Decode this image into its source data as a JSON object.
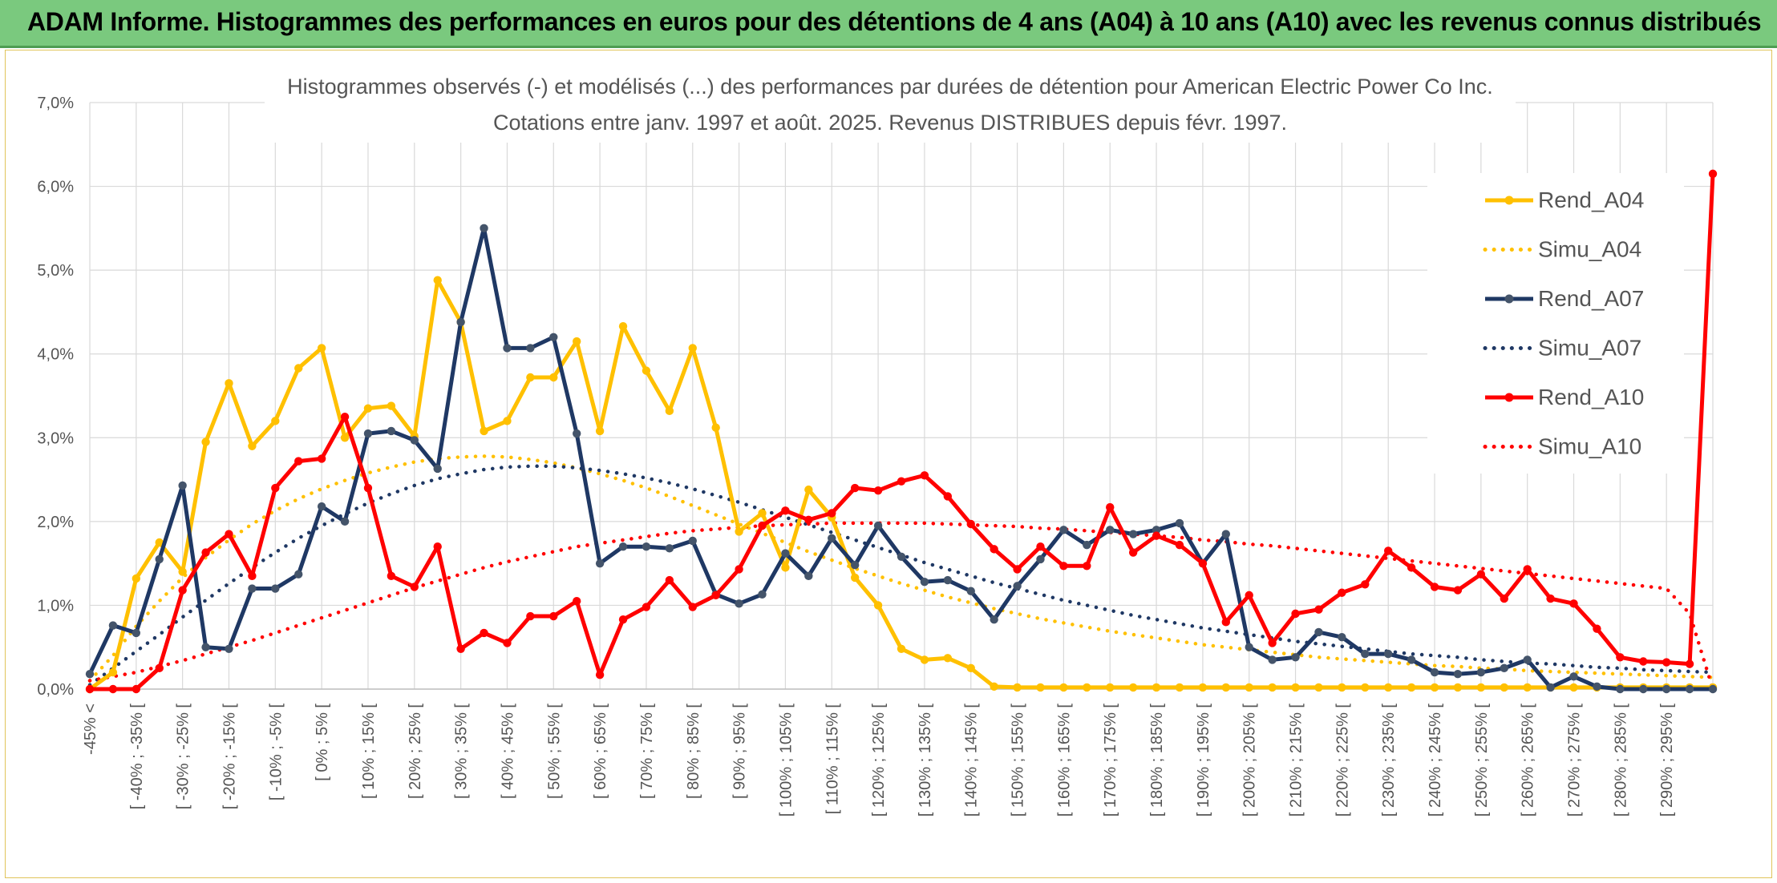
{
  "header": {
    "title": "ADAM Informe. Histogrammes des performances en euros pour des détentions de 4 ans (A04) à 10 ans (A10) avec les revenus connus distribués"
  },
  "chart_data": {
    "type": "line",
    "title": "Histogrammes observés (-) et modélisés (...) des performances par durées de détention pour American Electric Power Co Inc.",
    "subtitle": "Cotations entre janv. 1997 et août. 2025. Revenus DISTRIBUES depuis févr. 1997.",
    "ylim": [
      0,
      7
    ],
    "y_ticks": [
      "0,0%",
      "1,0%",
      "2,0%",
      "3,0%",
      "4,0%",
      "5,0%",
      "6,0%",
      "7,0%"
    ],
    "grid": true,
    "legend_position": "right",
    "x_labels": [
      "-45% <",
      "[ -40% ; -35% [",
      "[ -30% ; -25% [",
      "[ -20% ; -15% [",
      "[ -10% ; -5% [",
      "[ 0% ; 5% [",
      "[ 10% ; 15% [",
      "[ 20% ; 25% [",
      "[ 30% ; 35% [",
      "[ 40% ; 45% [",
      "[ 50% ; 55% [",
      "[ 60% ; 65% [",
      "[ 70% ; 75% [",
      "[ 80% ; 85% [",
      "[ 90% ; 95% [",
      "[ 100% ; 105% [",
      "[ 110% ; 115% [",
      "[ 120% ; 125% [",
      "[ 130% ; 135% [",
      "[ 140% ; 145% [",
      "[ 150% ; 155% [",
      "[ 160% ; 165% [",
      "[ 170% ; 175% [",
      "[ 180% ; 185% [",
      "[ 190% ; 195% [",
      "[ 200% ; 205% [",
      "[ 210% ; 215% [",
      "[ 220% ; 225% [",
      "[ 230% ; 235% [",
      "[ 240% ; 245% [",
      "[ 250% ; 255% [",
      "[ 260% ; 265% [",
      "[ 270% ; 275% [",
      "[ 280% ; 285% [",
      "[ 290% ; 295% ["
    ],
    "series": [
      {
        "name": "Rend_A04",
        "style": "solid",
        "color": "#ffc000",
        "values": [
          0.0,
          0.2,
          1.32,
          1.75,
          1.4,
          2.95,
          3.65,
          2.9,
          3.2,
          3.83,
          4.07,
          3.0,
          3.35,
          3.38,
          3.02,
          4.88,
          4.38,
          3.08,
          3.2,
          3.72,
          3.72,
          4.15,
          3.08,
          4.33,
          3.8,
          3.32,
          4.07,
          3.12,
          1.88,
          2.1,
          1.45,
          2.38,
          2.05,
          1.33,
          1.0,
          0.48,
          0.35,
          0.37,
          0.25,
          0.03,
          0.02,
          0.02,
          0.02,
          0.02,
          0.02,
          0.02,
          0.02,
          0.02,
          0.02,
          0.02,
          0.02,
          0.02,
          0.02,
          0.02,
          0.02,
          0.02,
          0.02,
          0.02,
          0.02,
          0.02,
          0.02,
          0.02,
          0.02,
          0.02,
          0.02,
          0.02,
          0.02,
          0.02,
          0.02,
          0.02,
          0.02,
          0.02,
          0.02,
          0.02,
          0.02,
          0.02,
          0.02,
          0.02,
          0.02,
          0.02,
          0.02,
          0.02,
          0.02,
          0.02,
          0.02,
          0.02,
          0.02,
          0.02,
          0.02,
          0.02,
          0.02,
          0.02,
          0.02,
          0.02,
          0.02,
          0.02,
          0.02,
          0.02,
          0.02
        ]
      },
      {
        "name": "Simu_A04",
        "style": "dotted",
        "color": "#ffc000",
        "values": [
          0.1,
          0.4,
          0.75,
          1.05,
          1.33,
          1.57,
          1.78,
          1.97,
          2.13,
          2.27,
          2.39,
          2.49,
          2.58,
          2.65,
          2.71,
          2.75,
          2.77,
          2.78,
          2.77,
          2.74,
          2.7,
          2.64,
          2.57,
          2.49,
          2.4,
          2.3,
          2.19,
          2.08,
          1.97,
          1.86,
          1.75,
          1.64,
          1.54,
          1.44,
          1.35,
          1.26,
          1.18,
          1.1,
          1.03,
          0.96,
          0.9,
          0.84,
          0.79,
          0.74,
          0.69,
          0.65,
          0.61,
          0.57,
          0.53,
          0.5,
          0.47,
          0.44,
          0.41,
          0.38,
          0.36,
          0.34,
          0.32,
          0.3,
          0.28,
          0.27,
          0.25,
          0.24,
          0.22,
          0.21,
          0.2,
          0.19,
          0.18,
          0.17,
          0.16,
          0.15,
          0.14,
          0.13,
          0.12,
          0.12,
          0.11,
          0.1,
          0.1,
          0.09,
          0.09,
          0.08,
          0.08,
          0.07,
          0.07,
          0.07,
          0.06,
          0.06,
          0.06,
          0.05,
          0.05,
          0.05,
          0.05,
          0.04,
          0.04,
          0.04,
          0.04,
          0.04,
          0.03,
          0.03,
          0.03
        ]
      },
      {
        "name": "Rend_A07",
        "style": "solid",
        "color": "#1f3864",
        "values": [
          0.18,
          0.76,
          0.67,
          1.55,
          2.43,
          0.5,
          0.48,
          1.2,
          1.2,
          1.37,
          2.18,
          2.0,
          3.05,
          3.08,
          2.97,
          2.63,
          4.38,
          5.5,
          4.07,
          4.07,
          4.2,
          3.05,
          1.5,
          1.7,
          1.7,
          1.68,
          1.77,
          1.13,
          1.02,
          1.13,
          1.62,
          1.35,
          1.8,
          1.48,
          1.95,
          1.58,
          1.28,
          1.3,
          1.17,
          0.83,
          1.23,
          1.55,
          1.9,
          1.72,
          1.9,
          1.85,
          1.9,
          1.98,
          1.5,
          1.85,
          0.5,
          0.35,
          0.38,
          0.68,
          0.62,
          0.42,
          0.42,
          0.35,
          0.2,
          0.18,
          0.2,
          0.25,
          0.35,
          0.02,
          0.15,
          0.03,
          0.0,
          0.0,
          0.0,
          0.0,
          0.0,
          0.0,
          0.0,
          0.0,
          0.0,
          0.0,
          0.0,
          0.0,
          0.0,
          0.0,
          0.0,
          0.0,
          0.0,
          0.0,
          0.0,
          0.0,
          0.0,
          0.0,
          0.0,
          0.0,
          0.0,
          0.0,
          0.0,
          0.0,
          0.0,
          0.0,
          0.0,
          0.0,
          0.0
        ]
      },
      {
        "name": "Simu_A07",
        "style": "dotted",
        "color": "#1f3864",
        "values": [
          0.05,
          0.25,
          0.45,
          0.65,
          0.86,
          1.06,
          1.26,
          1.45,
          1.63,
          1.8,
          1.95,
          2.09,
          2.22,
          2.33,
          2.43,
          2.51,
          2.57,
          2.62,
          2.65,
          2.66,
          2.66,
          2.64,
          2.61,
          2.57,
          2.52,
          2.46,
          2.39,
          2.31,
          2.23,
          2.14,
          2.05,
          1.96,
          1.87,
          1.78,
          1.69,
          1.6,
          1.51,
          1.43,
          1.35,
          1.27,
          1.2,
          1.13,
          1.06,
          1.0,
          0.94,
          0.88,
          0.83,
          0.78,
          0.73,
          0.69,
          0.65,
          0.61,
          0.57,
          0.54,
          0.51,
          0.48,
          0.45,
          0.42,
          0.4,
          0.38,
          0.35,
          0.33,
          0.31,
          0.3,
          0.28,
          0.26,
          0.25,
          0.23,
          0.22,
          0.21,
          0.2,
          0.19,
          0.18,
          0.17,
          0.16,
          0.15,
          0.14,
          0.13,
          0.13,
          0.12,
          0.11,
          0.11,
          0.1,
          0.1,
          0.09,
          0.09,
          0.08,
          0.08,
          0.07,
          0.07,
          0.07,
          0.06,
          0.06,
          0.06,
          0.05,
          0.05,
          0.05,
          0.05,
          0.0
        ]
      },
      {
        "name": "Rend_A10",
        "style": "solid",
        "color": "#ff0000",
        "values": [
          0.0,
          0.0,
          0.0,
          0.25,
          1.18,
          1.63,
          1.85,
          1.35,
          2.4,
          2.72,
          2.75,
          3.25,
          2.4,
          1.35,
          1.22,
          1.7,
          0.48,
          0.67,
          0.55,
          0.87,
          0.87,
          1.05,
          0.17,
          0.83,
          0.98,
          1.3,
          0.98,
          1.12,
          1.43,
          1.95,
          2.13,
          2.02,
          2.1,
          2.4,
          2.37,
          2.48,
          2.55,
          2.3,
          1.97,
          1.67,
          1.43,
          1.7,
          1.47,
          1.47,
          2.17,
          1.63,
          1.83,
          1.72,
          1.5,
          0.8,
          1.12,
          0.55,
          0.9,
          0.95,
          1.15,
          1.25,
          1.65,
          1.45,
          1.22,
          1.18,
          1.37,
          1.08,
          1.43,
          1.08,
          1.02,
          0.72,
          0.38,
          0.33,
          0.32,
          0.3,
          6.15
        ]
      },
      {
        "name": "Simu_A10",
        "style": "dotted",
        "color": "#ff0000",
        "values": [
          0.1,
          0.15,
          0.2,
          0.27,
          0.34,
          0.42,
          0.5,
          0.58,
          0.67,
          0.76,
          0.85,
          0.94,
          1.03,
          1.12,
          1.21,
          1.29,
          1.37,
          1.45,
          1.52,
          1.58,
          1.64,
          1.7,
          1.74,
          1.78,
          1.82,
          1.86,
          1.89,
          1.91,
          1.93,
          1.95,
          1.96,
          1.97,
          1.98,
          1.98,
          1.98,
          1.98,
          1.98,
          1.97,
          1.96,
          1.95,
          1.94,
          1.92,
          1.91,
          1.89,
          1.87,
          1.85,
          1.83,
          1.81,
          1.78,
          1.76,
          1.73,
          1.71,
          1.68,
          1.65,
          1.62,
          1.59,
          1.56,
          1.53,
          1.5,
          1.47,
          1.44,
          1.41,
          1.38,
          1.35,
          1.32,
          1.29,
          1.26,
          1.23,
          1.2,
          0.9,
          0.0
        ]
      }
    ]
  }
}
